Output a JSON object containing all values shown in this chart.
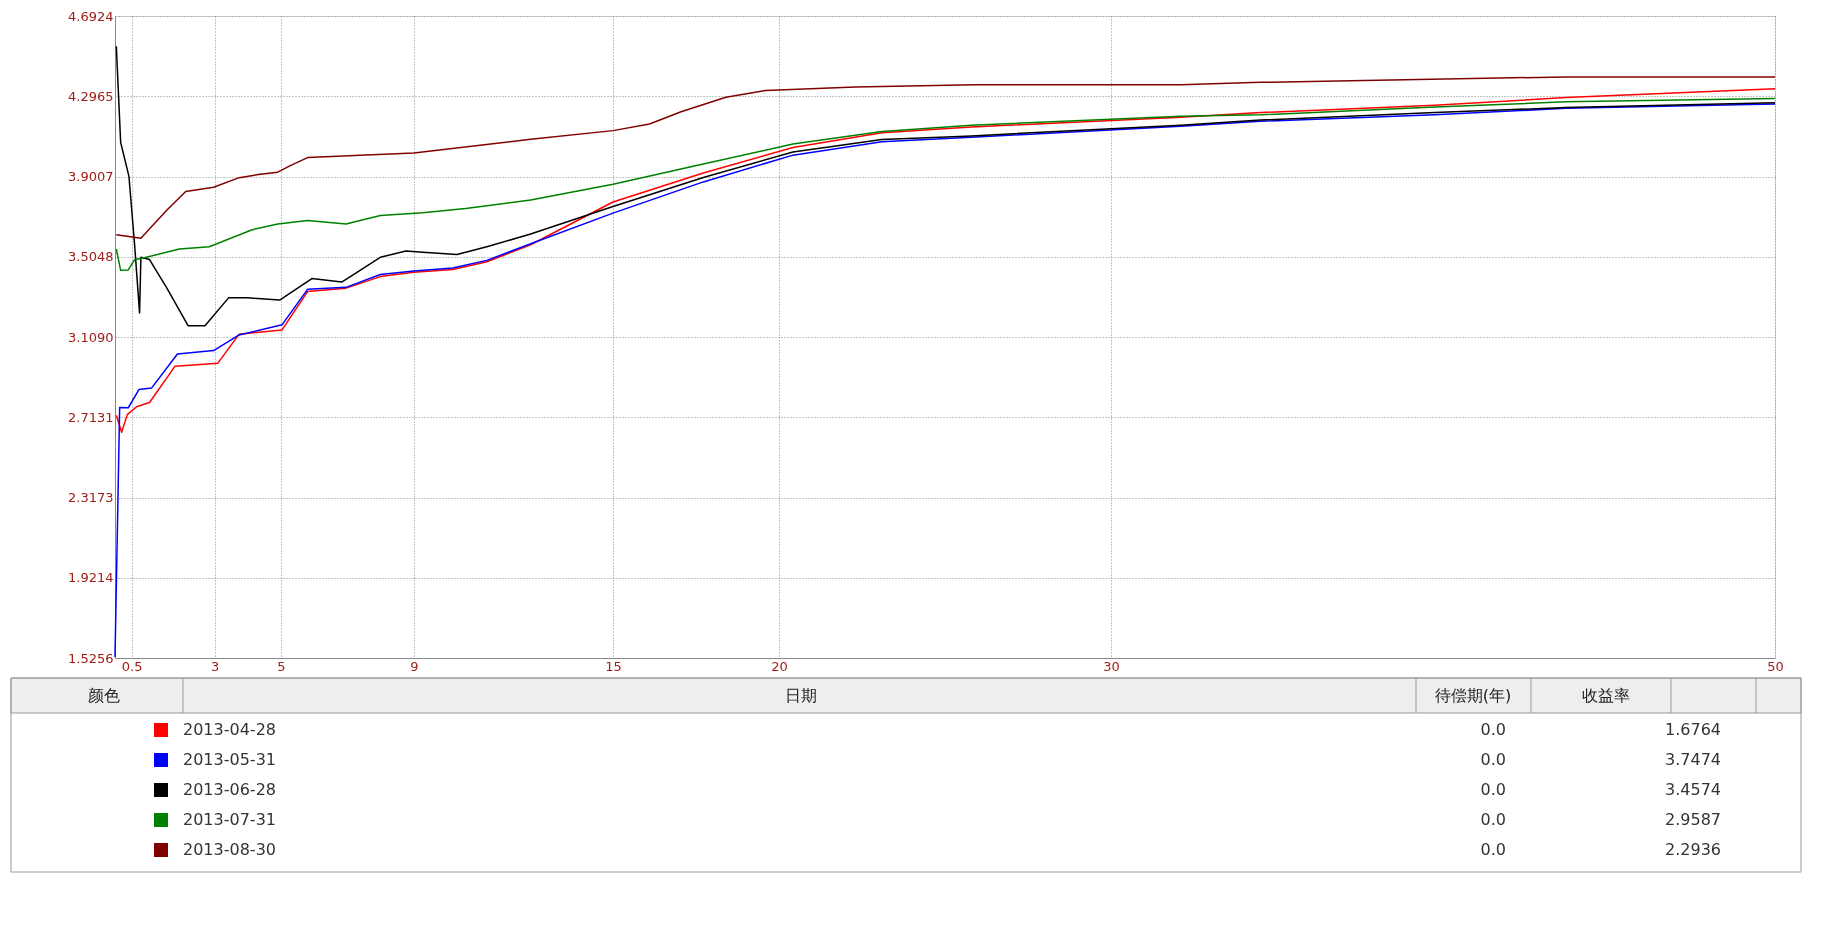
{
  "chart_data": [
    {
      "type": "line",
      "xlim": [
        0,
        50
      ],
      "xticks": [
        0.5,
        3,
        5,
        9,
        15,
        20,
        30,
        50
      ],
      "ylim": [
        1.5256,
        4.6924
      ],
      "yticks": [
        1.5256,
        1.9214,
        2.3173,
        2.7131,
        {
          "value": 3.109,
          "label": "3.1090"
        },
        3.5048,
        3.9007,
        4.2965,
        4.6924
      ],
      "grid": true,
      "line_style": "solid",
      "marker": "none",
      "legend": "bottom",
      "series": [
        {
          "name": "2013-04-28",
          "color": "#ff0000",
          "x": [
            0.04,
            0.2,
            0.37,
            0.65,
            1.04,
            1.81,
            3.1,
            3.74,
            5.03,
            5.8,
            6.96,
            7.99,
            9,
            10.17,
            11.2,
            12.52,
            15,
            17.72,
            20.42,
            23.1,
            25.8,
            32.1,
            34.5,
            39.75,
            43.7,
            50
          ],
          "values": [
            2.723,
            2.639,
            2.726,
            2.765,
            2.786,
            2.965,
            2.98,
            3.123,
            3.144,
            3.333,
            3.35,
            3.407,
            3.428,
            3.442,
            3.48,
            3.564,
            3.775,
            3.918,
            4.044,
            4.116,
            4.145,
            4.193,
            4.216,
            4.252,
            4.29,
            4.333
          ]
        },
        {
          "name": "2013-05-31",
          "color": "#0000ff",
          "x": [
            0,
            0.14,
            0.4,
            0.72,
            1.1,
            1.88,
            2.97,
            3.74,
            5.03,
            5.8,
            6.96,
            7.99,
            9,
            10.17,
            11.2,
            12.52,
            15,
            17.72,
            20.42,
            23.1,
            25.8,
            32.1,
            34.5,
            39.75,
            43.7,
            50
          ],
          "values": [
            1.53,
            2.761,
            2.76,
            2.85,
            2.857,
            3.025,
            3.042,
            3.119,
            3.169,
            3.344,
            3.354,
            3.417,
            3.434,
            3.449,
            3.487,
            3.569,
            3.72,
            3.874,
            4.006,
            4.072,
            4.094,
            4.149,
            4.173,
            4.205,
            4.237,
            4.258
          ]
        },
        {
          "name": "2013-06-28",
          "color": "#000000",
          "x": [
            0.04,
            0.17,
            0.42,
            0.59,
            0.74,
            0.78,
            1.04,
            1.55,
            2.2,
            2.71,
            3.42,
            4.0,
            4.96,
            5.93,
            6.83,
            7.99,
            8.76,
            9.27,
            10.3,
            11.2,
            12.52,
            15,
            17.72,
            20.42,
            23.1,
            25.8,
            32.1,
            34.5,
            39.75,
            43.7,
            50
          ],
          "values": [
            4.543,
            4.069,
            3.901,
            3.565,
            3.228,
            3.502,
            3.491,
            3.354,
            3.165,
            3.165,
            3.302,
            3.302,
            3.291,
            3.397,
            3.38,
            3.502,
            3.533,
            3.527,
            3.516,
            3.554,
            3.617,
            3.753,
            3.896,
            4.022,
            4.083,
            4.101,
            4.154,
            4.179,
            4.216,
            4.241,
            4.265
          ]
        },
        {
          "name": "2013-07-31",
          "color": "#008000",
          "x": [
            0.04,
            0.17,
            0.4,
            0.59,
            0.91,
            1.94,
            2.84,
            4.13,
            4.9,
            5.8,
            6.96,
            7.99,
            9.27,
            10.56,
            12.52,
            15,
            17.72,
            20.42,
            23.1,
            25.8,
            32.1,
            34.5,
            39.75,
            43.7,
            50
          ],
          "values": [
            3.543,
            3.438,
            3.44,
            3.49,
            3.501,
            3.543,
            3.554,
            3.638,
            3.666,
            3.684,
            3.666,
            3.708,
            3.722,
            3.743,
            3.785,
            3.863,
            3.962,
            4.061,
            4.123,
            4.154,
            4.198,
            4.205,
            4.243,
            4.269,
            4.286
          ]
        },
        {
          "name": "2013-08-30",
          "color": "#800000",
          "x": [
            0.04,
            0.78,
            1.55,
            2.13,
            2.97,
            3.74,
            4.26,
            4.9,
            5.28,
            5.8,
            9,
            12.52,
            15,
            16.1,
            17.05,
            18.4,
            19.6,
            22.3,
            25.9,
            32.1,
            34.5,
            43.7,
            50
          ],
          "values": [
            3.613,
            3.596,
            3.733,
            3.827,
            3.848,
            3.895,
            3.909,
            3.922,
            3.954,
            3.994,
            4.017,
            4.084,
            4.127,
            4.16,
            4.22,
            4.292,
            4.325,
            4.342,
            4.353,
            4.353,
            4.365,
            4.392,
            4.392
          ]
        }
      ]
    },
    {
      "type": "other",
      "categories": [
        "颜色",
        "日期",
        "待偿期(年)",
        "收益率"
      ],
      "annotations": [
        "0.0",
        "1.6764",
        "0.0",
        "3.7474",
        "0.0",
        "3.4574",
        "0.0",
        "2.9587",
        "0.0",
        "2.2936"
      ]
    }
  ]
}
